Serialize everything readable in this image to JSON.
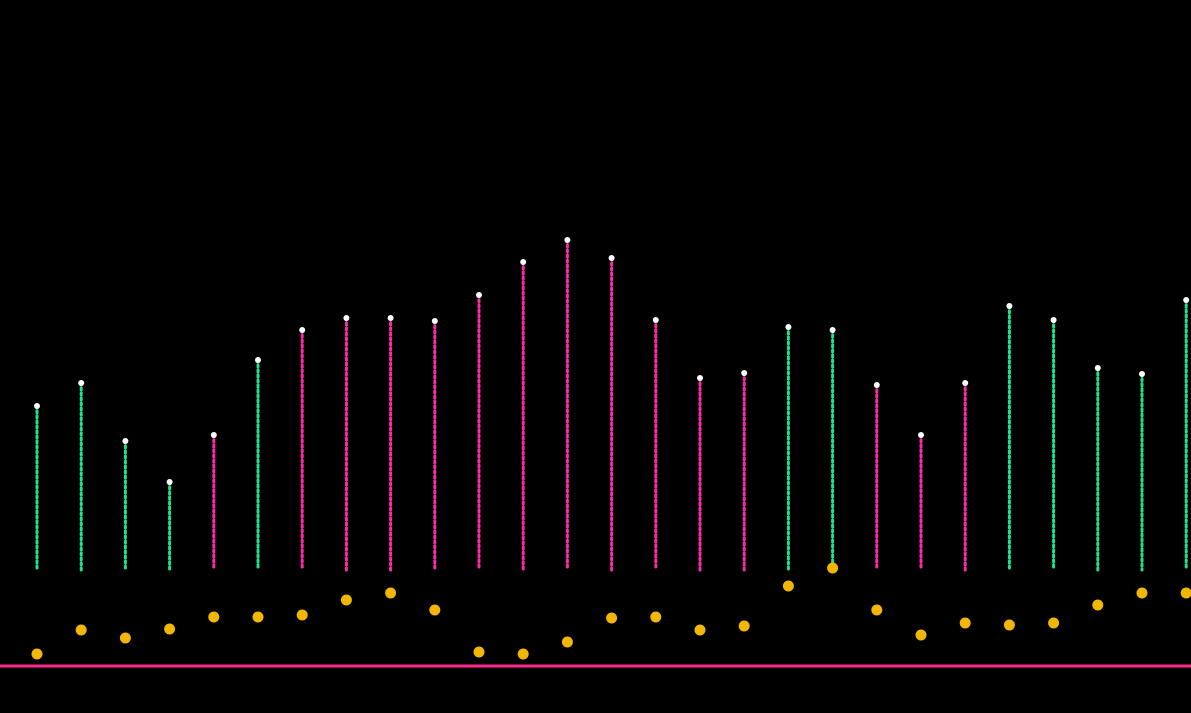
{
  "chart_data": {
    "type": "dot-columns",
    "ylim": [
      0,
      666
    ],
    "series": [
      {
        "color": "#1de38f",
        "values": [
          260,
          283,
          225,
          184,
          231,
          306,
          336,
          348,
          348,
          345,
          371,
          404,
          426,
          408,
          346,
          288,
          293,
          339,
          336,
          281,
          231,
          283,
          360,
          346,
          298,
          292,
          366
        ]
      },
      {
        "color": "#ff2aa8",
        "values": [
          96,
          96,
          96,
          96,
          96,
          96,
          96,
          96,
          96,
          96,
          96,
          96,
          96,
          96,
          96,
          96,
          96,
          96,
          96,
          96,
          96,
          96,
          96,
          96,
          96,
          96,
          96
        ]
      },
      {
        "color": "#f2b705",
        "values": [
          12,
          36,
          28,
          37,
          49,
          49,
          51,
          66,
          73,
          56,
          14,
          12,
          24,
          48,
          49,
          36,
          40,
          80,
          98,
          56,
          31,
          43,
          41,
          43,
          61,
          73,
          73
        ]
      }
    ],
    "stem_colors": [
      "#1de38f",
      "#1de38f",
      "#1de38f",
      "#1de38f",
      "#ff2aa8",
      "#1de38f",
      "#ff2aa8",
      "#ff2aa8",
      "#ff2aa8",
      "#ff2aa8",
      "#ff2aa8",
      "#ff2aa8",
      "#ff2aa8",
      "#ff2aa8",
      "#ff2aa8",
      "#ff2aa8",
      "#ff2aa8",
      "#1de38f",
      "#1de38f",
      "#ff2aa8",
      "#ff2aa8",
      "#ff2aa8",
      "#1de38f",
      "#1de38f",
      "#1de38f",
      "#1de38f",
      "#1de38f"
    ],
    "baseline_color": "#ff2a8a"
  }
}
